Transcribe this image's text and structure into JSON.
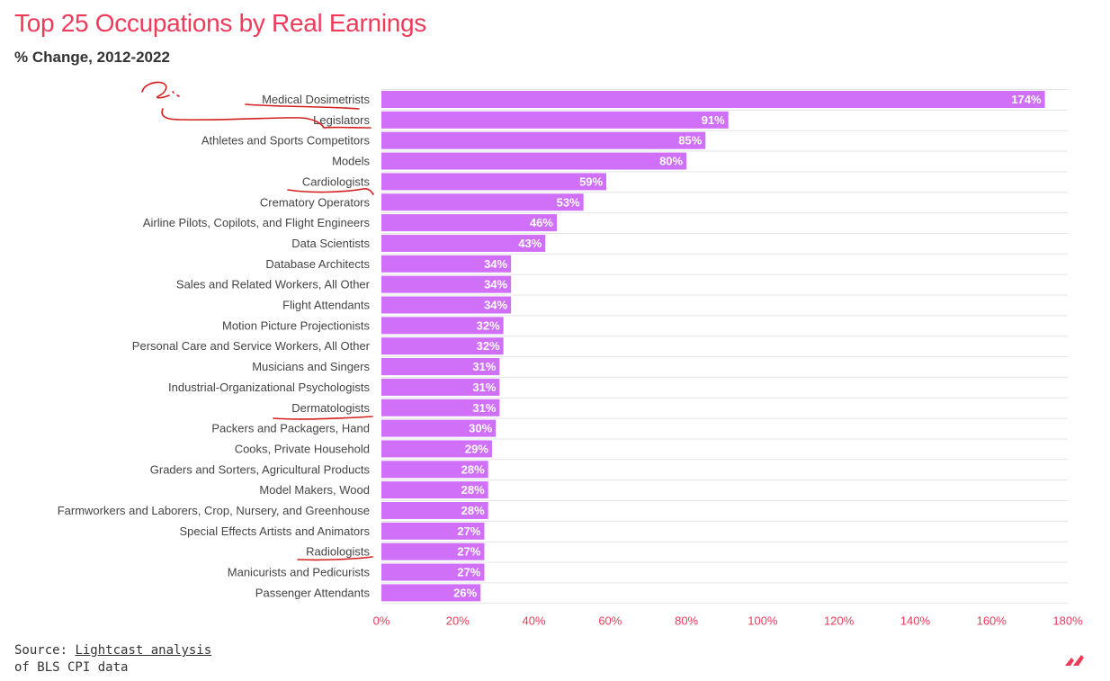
{
  "title": "Top 25 Occupations by Real Earnings",
  "subtitle": "% Change, 2012-2022",
  "source": {
    "prefix": "Source: ",
    "link_text": "Lightcast analysis",
    "line2": "of BLS CPI data"
  },
  "colors": {
    "bar": "#d070f9",
    "title": "#f03a5a",
    "axis_ticks": "#f03a5a",
    "grid": "#e3e3e3",
    "annotation": "#d42020",
    "logo": "#f03a5a"
  },
  "chart_data": {
    "type": "bar",
    "orientation": "horizontal",
    "categories": [
      "Medical Dosimetrists",
      "Legislators",
      "Athletes and Sports Competitors",
      "Models",
      "Cardiologists",
      "Crematory Operators",
      "Airline Pilots, Copilots, and Flight Engineers",
      "Data Scientists",
      "Database Architects",
      "Sales and Related Workers, All Other",
      "Flight Attendants",
      "Motion Picture Projectionists",
      "Personal Care and Service Workers, All Other",
      "Musicians and Singers",
      "Industrial-Organizational Psychologists",
      "Dermatologists",
      "Packers and Packagers, Hand",
      "Cooks, Private Household",
      "Graders and Sorters, Agricultural Products",
      "Model Makers, Wood",
      "Farmworkers and Laborers, Crop, Nursery, and Greenhouse",
      "Special Effects Artists and Animators",
      "Radiologists",
      "Manicurists and Pedicurists",
      "Passenger Attendants"
    ],
    "values": [
      174,
      91,
      85,
      80,
      59,
      53,
      46,
      43,
      34,
      34,
      34,
      32,
      32,
      31,
      31,
      31,
      30,
      29,
      28,
      28,
      28,
      27,
      27,
      27,
      26
    ],
    "data_labels": [
      "174%",
      "91%",
      "85%",
      "80%",
      "59%",
      "53%",
      "46%",
      "43%",
      "34%",
      "34%",
      "34%",
      "32%",
      "32%",
      "31%",
      "31%",
      "31%",
      "30%",
      "29%",
      "28%",
      "28%",
      "28%",
      "27%",
      "27%",
      "27%",
      "26%"
    ],
    "xlim": [
      0,
      180
    ],
    "xticks": [
      0,
      20,
      40,
      60,
      80,
      100,
      120,
      140,
      160,
      180
    ],
    "xtick_labels": [
      "0%",
      "20%",
      "40%",
      "60%",
      "80%",
      "100%",
      "120%",
      "140%",
      "160%",
      "180%"
    ],
    "grid": true,
    "legend": "none",
    "annotations": {
      "underlined": [
        "Medical Dosimetrists",
        "Legislators",
        "Cardiologists",
        "Dermatologists",
        "Radiologists"
      ],
      "handwritten_note": "?"
    }
  }
}
